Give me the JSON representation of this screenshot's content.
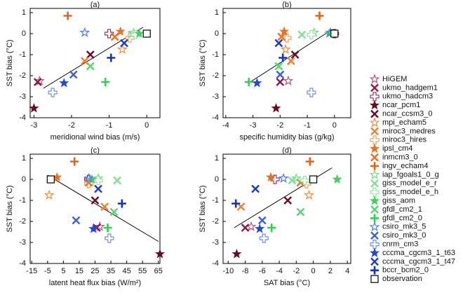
{
  "chart_data": {
    "type": "scatter",
    "panels": [
      {
        "title": "(a)",
        "xlabel": "meridional wind bias (m/s)",
        "ylabel": "SST bias (°C)",
        "xlim": [
          -3.1,
          0.35
        ],
        "xticks": [
          -3,
          -2,
          -1,
          0
        ],
        "ylim": [
          -4,
          1.2
        ],
        "yticks": [
          1,
          0,
          -1,
          -2,
          -3,
          -4
        ],
        "fit": {
          "x": [
            -2.75,
            -0.1
          ],
          "y": [
            -2.6,
            0.3
          ]
        }
      },
      {
        "title": "(b)",
        "xlabel": "specific humidity bias (g/kg)",
        "ylabel": "SST bias (°C)",
        "xlim": [
          -4.1,
          0.6
        ],
        "xticks": [
          -4,
          -3,
          -2,
          -1,
          0
        ],
        "ylim": [
          -4,
          1.2
        ],
        "yticks": [
          1,
          0,
          -1,
          -2,
          -3,
          -4
        ],
        "fit": {
          "x": [
            -3.1,
            -0.08
          ],
          "y": [
            -2.3,
            0.2
          ]
        }
      },
      {
        "title": "(c)",
        "xlabel": "latent heat flux bias (W/m²)",
        "ylabel": "SST bias (°C)",
        "xlim": [
          -16,
          66
        ],
        "xticks": [
          -15,
          -5,
          5,
          15,
          25,
          35,
          45,
          55,
          65
        ],
        "ylim": [
          -4,
          1.2
        ],
        "yticks": [
          1,
          0,
          -1,
          -2,
          -3,
          -4
        ],
        "fit": {
          "x": [
            -5,
            65
          ],
          "y": [
            0.2,
            -2.95
          ]
        }
      },
      {
        "title": "(d)",
        "xlabel": "SAT bias (°C)",
        "ylabel": "SST bias (°C)",
        "xlim": [
          -10.6,
          4.4
        ],
        "xticks": [
          -10,
          -8,
          -6,
          -4,
          -2,
          0,
          2,
          4
        ],
        "ylim": [
          -4,
          1.2
        ],
        "yticks": [
          1,
          0,
          -1,
          -2,
          -3,
          -4
        ],
        "fit": {
          "x": [
            -9.3,
            2.2
          ],
          "y": [
            -2.3,
            0.55
          ]
        }
      }
    ],
    "series": [
      {
        "name": "HiGEM",
        "color": "#c0507a",
        "marker": "star-open",
        "y": -2.25,
        "x": [
          -2.85,
          -1.7,
          28,
          -7.3
        ]
      },
      {
        "name": "ukmo_hadgem1",
        "color": "#8b1a4a",
        "marker": "x",
        "y": -2.3,
        "x": [
          -2.9,
          -2.0,
          26,
          -8.0
        ]
      },
      {
        "name": "ukmo_hadcm3",
        "color": "#a0306a",
        "marker": "plus-open",
        "y": 0.0,
        "x": [
          -1.0,
          0.0,
          21,
          -4.5
        ]
      },
      {
        "name": "ncar_pcm1",
        "color": "#6a0a20",
        "marker": "star",
        "y": -3.55,
        "x": [
          -3.0,
          -2.15,
          66,
          -9.0
        ]
      },
      {
        "name": "ncar_ccsm3_0",
        "color": "#6a0a20",
        "marker": "x",
        "y": -1.0,
        "x": [
          -1.5,
          -1.45,
          25,
          -3.0
        ]
      },
      {
        "name": "mpi_echam5",
        "color": "#f09040",
        "marker": "star-open",
        "y": -0.75,
        "x": [
          -0.65,
          -1.8,
          -4,
          -0.5
        ]
      },
      {
        "name": "miroc3_medres",
        "color": "#f08030",
        "marker": "x",
        "y": -1.3,
        "x": [
          -1.65,
          -1.6,
          31,
          -8.5
        ]
      },
      {
        "name": "miroc3_hires",
        "color": "#f0a060",
        "marker": "plus-open",
        "y": -0.2,
        "x": [
          -0.45,
          -1.75,
          21,
          -0.8
        ]
      },
      {
        "name": "ipsl_cm4",
        "color": "#e87020",
        "marker": "star",
        "y": 0.1,
        "x": [
          -0.7,
          -1.85,
          1,
          -5.0
        ]
      },
      {
        "name": "inmcm3_0",
        "color": "#f07020",
        "marker": "x",
        "y": -0.15,
        "x": [
          -0.85,
          -1.95,
          21,
          -1.5
        ]
      },
      {
        "name": "ingv_echam4",
        "color": "#f06010",
        "marker": "plus",
        "y": 0.85,
        "x": [
          -2.1,
          -0.55,
          12,
          -0.4
        ]
      },
      {
        "name": "iap_fgoals1_0_g",
        "color": "#70e080",
        "marker": "star-open",
        "y": 0.05,
        "x": [
          -0.35,
          -0.75,
          27,
          -2.0
        ]
      },
      {
        "name": "giss_model_e_r",
        "color": "#80e090",
        "marker": "x",
        "y": -0.05,
        "x": [
          -0.4,
          -1.2,
          39,
          -2.5
        ]
      },
      {
        "name": "giss_model_e_h",
        "color": "#90e8a0",
        "marker": "plus-open",
        "y": -0.05,
        "x": [
          -0.3,
          -0.85,
          27,
          -1.0
        ]
      },
      {
        "name": "giss_aom",
        "color": "#40d060",
        "marker": "star",
        "y": 0.0,
        "x": [
          -0.2,
          -0.2,
          23,
          2.8
        ]
      },
      {
        "name": "gfdl_cm2_1",
        "color": "#50d870",
        "marker": "x",
        "y": -1.55,
        "x": [
          -1.5,
          -2.05,
          37,
          -1.5
        ]
      },
      {
        "name": "gfdl_cm2_0",
        "color": "#30d050",
        "marker": "plus",
        "y": -2.3,
        "x": [
          -1.1,
          -3.15,
          33,
          -4.9
        ]
      },
      {
        "name": "csiro_mk3_5",
        "color": "#4a7cf0",
        "marker": "star-open",
        "y": 0.05,
        "x": [
          -1.65,
          -0.15,
          21,
          -3.5
        ]
      },
      {
        "name": "csiro_mk3_0",
        "color": "#3a60e0",
        "marker": "x",
        "y": -1.95,
        "x": [
          -1.95,
          -2.0,
          13,
          -6.0
        ]
      },
      {
        "name": "cnrm_cm3",
        "color": "#6a90f0",
        "marker": "plus-open",
        "y": -2.8,
        "x": [
          -2.5,
          -0.85,
          34,
          -5.8
        ]
      },
      {
        "name": "cccma_cgcm3_1_t63",
        "color": "#2048e0",
        "marker": "star",
        "y": -2.35,
        "x": [
          -2.2,
          -2.85,
          24,
          -6.3
        ]
      },
      {
        "name": "cccma_cgcm3_1_t47",
        "color": "#1838d8",
        "marker": "x",
        "y": -0.45,
        "x": [
          -0.6,
          -2.05,
          27,
          -6.8
        ]
      },
      {
        "name": "bccr_bcm2_0",
        "color": "#1030d0",
        "marker": "plus",
        "y": -1.15,
        "x": [
          -0.95,
          -1.9,
          42,
          -9.1
        ]
      },
      {
        "name": "observation",
        "color": "#000000",
        "marker": "square-open",
        "y": 0.0,
        "x": [
          0,
          0,
          -3,
          0
        ]
      }
    ]
  }
}
